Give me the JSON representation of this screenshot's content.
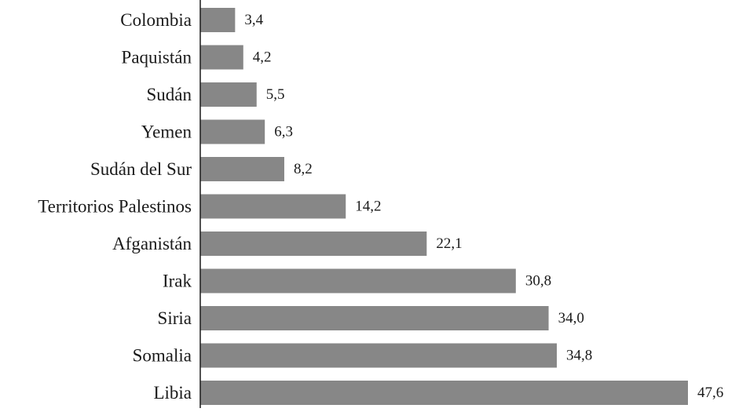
{
  "chart_data": {
    "type": "bar",
    "orientation": "horizontal",
    "title": "",
    "xlabel": "",
    "ylabel": "",
    "categories": [
      "Colombia",
      "Paquistán",
      "Sudán",
      "Yemen",
      "Sudán del Sur",
      "Territorios Palestinos",
      "Afganistán",
      "Irak",
      "Siria",
      "Somalia",
      "Libia"
    ],
    "values": [
      3.4,
      4.2,
      5.5,
      6.3,
      8.2,
      14.2,
      22.1,
      30.8,
      34.0,
      34.8,
      47.6
    ],
    "value_labels": [
      "3,4",
      "4,2",
      "5,5",
      "6,3",
      "8,2",
      "14,2",
      "22,1",
      "30,8",
      "34,0",
      "34,8",
      "47,6"
    ],
    "xlim": [
      0,
      47.6
    ],
    "grid": false,
    "legend": "none",
    "bar_color": "#878787"
  }
}
